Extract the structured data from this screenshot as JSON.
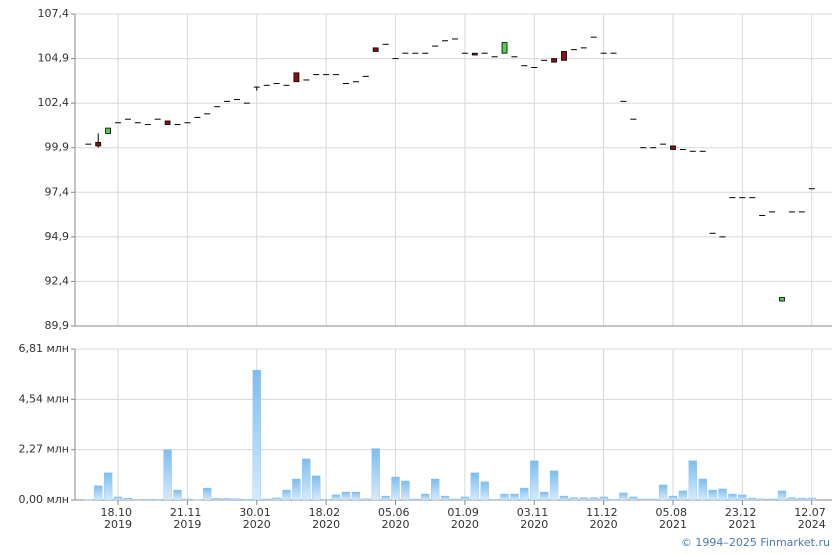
{
  "chart_data": [
    {
      "type": "candlestick",
      "open": [
        100.1,
        100.2,
        100.7,
        101.3,
        101.5,
        101.3,
        101.2,
        101.5,
        101.4,
        101.2,
        101.3,
        101.6,
        101.8,
        102.2,
        102.5,
        102.6,
        102.4,
        103.3,
        103.4,
        103.5,
        103.4,
        104.1,
        103.7,
        104.0,
        104.0,
        104.0,
        103.5,
        103.6,
        103.9,
        105.5,
        105.7,
        104.9,
        105.2,
        105.2,
        105.2,
        105.6,
        105.9,
        106.0,
        105.2,
        105.2,
        105.2,
        105.0,
        105.2,
        105.0,
        104.5,
        104.4,
        104.8,
        104.9,
        105.3,
        105.4,
        105.5,
        106.1,
        105.2,
        105.2,
        102.5,
        101.5,
        99.9,
        99.9,
        100.1,
        100.0,
        99.8,
        99.7,
        99.7,
        95.1,
        94.9,
        97.1,
        97.1,
        97.1,
        96.1,
        96.3,
        91.3,
        96.3,
        96.3,
        97.6
      ],
      "high": [
        100.1,
        100.7,
        101.0,
        101.3,
        101.5,
        101.3,
        101.2,
        101.5,
        101.4,
        101.2,
        101.3,
        101.6,
        101.8,
        102.2,
        102.5,
        102.6,
        102.4,
        103.3,
        103.4,
        103.5,
        103.4,
        104.1,
        103.7,
        104.0,
        104.0,
        104.0,
        103.5,
        103.6,
        103.9,
        105.5,
        105.7,
        104.9,
        105.2,
        105.2,
        105.2,
        105.6,
        105.9,
        106.0,
        105.2,
        105.2,
        105.2,
        105.0,
        105.8,
        105.0,
        104.5,
        104.4,
        104.8,
        104.9,
        105.3,
        105.4,
        105.5,
        106.1,
        105.2,
        105.2,
        102.5,
        101.5,
        99.9,
        99.9,
        100.1,
        100.0,
        99.8,
        99.7,
        99.7,
        95.1,
        94.9,
        97.1,
        97.1,
        97.1,
        96.1,
        96.3,
        91.5,
        96.3,
        96.3,
        97.6
      ],
      "low": [
        100.1,
        99.9,
        100.7,
        101.3,
        101.5,
        101.3,
        101.2,
        101.5,
        101.2,
        101.2,
        101.3,
        101.6,
        101.8,
        102.2,
        102.5,
        102.6,
        102.4,
        103.1,
        103.4,
        103.5,
        103.4,
        103.6,
        103.7,
        104.0,
        104.0,
        104.0,
        103.5,
        103.6,
        103.9,
        105.3,
        105.7,
        104.9,
        105.2,
        105.2,
        105.2,
        105.6,
        105.9,
        106.0,
        105.2,
        105.1,
        105.2,
        105.0,
        105.2,
        105.0,
        104.5,
        104.4,
        104.8,
        104.7,
        104.8,
        105.4,
        105.5,
        106.1,
        105.2,
        105.2,
        102.5,
        101.5,
        99.9,
        99.9,
        100.1,
        99.8,
        99.8,
        99.7,
        99.7,
        95.1,
        94.9,
        97.1,
        97.1,
        97.1,
        96.1,
        96.3,
        91.3,
        96.3,
        96.3,
        97.6
      ],
      "close": [
        100.1,
        100.0,
        101.0,
        101.3,
        101.5,
        101.3,
        101.2,
        101.5,
        101.2,
        101.2,
        101.3,
        101.6,
        101.8,
        102.2,
        102.5,
        102.6,
        102.4,
        103.3,
        103.4,
        103.5,
        103.4,
        103.6,
        103.7,
        104.0,
        104.0,
        104.0,
        103.5,
        103.6,
        103.9,
        105.3,
        105.7,
        104.9,
        105.2,
        105.2,
        105.2,
        105.6,
        105.9,
        106.0,
        105.2,
        105.1,
        105.2,
        105.0,
        105.8,
        105.0,
        104.5,
        104.4,
        104.8,
        104.7,
        104.8,
        105.4,
        105.5,
        106.1,
        105.2,
        105.2,
        102.5,
        101.5,
        99.9,
        99.9,
        100.1,
        99.8,
        99.8,
        99.7,
        99.7,
        95.1,
        94.9,
        97.1,
        97.1,
        97.1,
        96.1,
        96.3,
        91.5,
        96.3,
        96.3,
        97.6
      ],
      "up_color": "#55cc55",
      "down_color": "#8b1010",
      "ylim": [
        89.9,
        107.4
      ],
      "yticks": [
        {
          "value": 89.9,
          "label": "89,9"
        },
        {
          "value": 92.4,
          "label": "92,4"
        },
        {
          "value": 94.9,
          "label": "94,9"
        },
        {
          "value": 97.4,
          "label": "97,4"
        },
        {
          "value": 99.9,
          "label": "99,9"
        },
        {
          "value": 102.4,
          "label": "102,4"
        },
        {
          "value": 104.9,
          "label": "104,9"
        },
        {
          "value": 107.4,
          "label": "107,4"
        }
      ],
      "grid": true
    },
    {
      "type": "bar",
      "categories": [
        null,
        null,
        null,
        "18.10 2019",
        null,
        null,
        null,
        null,
        null,
        null,
        "21.11 2019",
        null,
        null,
        null,
        null,
        null,
        null,
        "30.01 2020",
        null,
        null,
        null,
        null,
        null,
        null,
        "18.02 2020",
        null,
        null,
        null,
        null,
        null,
        null,
        "05.06 2020",
        null,
        null,
        null,
        null,
        null,
        null,
        "01.09 2020",
        null,
        null,
        null,
        null,
        null,
        null,
        "03.11 2020",
        null,
        null,
        null,
        null,
        null,
        null,
        "11.12 2020",
        null,
        null,
        null,
        null,
        null,
        null,
        "05.08 2021",
        null,
        null,
        null,
        null,
        null,
        null,
        "23.12 2021",
        null,
        null,
        null,
        null,
        null,
        null,
        "12.07 2024"
      ],
      "values": [
        0.02,
        0.64,
        1.23,
        0.14,
        0.09,
        0.03,
        0.03,
        0.03,
        2.27,
        0.45,
        0.05,
        0.02,
        0.54,
        0.08,
        0.08,
        0.06,
        0.03,
        5.86,
        0.05,
        0.1,
        0.45,
        0.95,
        1.86,
        1.09,
        0.03,
        0.23,
        0.36,
        0.36,
        0.06,
        2.32,
        0.18,
        1.04,
        0.86,
        0.05,
        0.27,
        0.95,
        0.18,
        0.05,
        0.14,
        1.23,
        0.82,
        0.03,
        0.27,
        0.27,
        0.54,
        1.77,
        0.36,
        1.32,
        0.18,
        0.11,
        0.11,
        0.11,
        0.14,
        0.03,
        0.32,
        0.14,
        0.05,
        0.05,
        0.68,
        0.18,
        0.41,
        1.77,
        0.95,
        0.45,
        0.5,
        0.27,
        0.23,
        0.09,
        0.05,
        0.05,
        0.41,
        0.11,
        0.09,
        0.09
      ],
      "color": "#7dbdee",
      "ylim": [
        0,
        6.81
      ],
      "yticks": [
        {
          "value": 0,
          "label": "0,00 млн"
        },
        {
          "value": 2.27,
          "label": "2,27 млн"
        },
        {
          "value": 4.54,
          "label": "4,54 млн"
        },
        {
          "value": 6.81,
          "label": "6,81 млн"
        }
      ],
      "grid": true
    }
  ],
  "credit": "© 1994–2025 Finmarket.ru"
}
